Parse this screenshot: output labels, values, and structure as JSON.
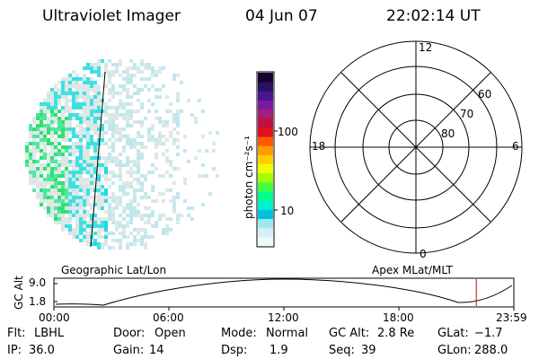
{
  "header": {
    "title": "Ultraviolet Imager",
    "date": "04 Jun 07",
    "time": "22:02:14 UT"
  },
  "colorbar": {
    "unit_label": "photon cm⁻²s⁻¹",
    "tick_labels": [
      "100",
      "10"
    ],
    "colors": [
      "#1a0030",
      "#2b1060",
      "#4a1590",
      "#7a1aa0",
      "#a0207a",
      "#c01040",
      "#e01020",
      "#ff5a00",
      "#ff9a00",
      "#ffd000",
      "#f0ff00",
      "#a0ff00",
      "#40ff40",
      "#00ff90",
      "#00f0d0",
      "#00c0e0",
      "#a0e8f0",
      "#d8f0f5",
      "#f0f8f8"
    ]
  },
  "polar_plot": {
    "mlt_labels": {
      "top": "12",
      "left": "18",
      "right": "6",
      "bottom": "0"
    },
    "lat_labels": [
      "60",
      "70",
      "80"
    ]
  },
  "altitude_panel": {
    "ylabel": "GC Alt",
    "y_ticks": [
      "9.0",
      "1.8"
    ],
    "left_title": "Geographic Lat/Lon",
    "right_title": "Apex  MLat/MLT",
    "time_ticks": [
      "00:00",
      "06:00",
      "12:00",
      "18:00",
      "23:59"
    ],
    "marker_time_hours": 22.04
  },
  "status": {
    "row1": [
      {
        "label": "Flt:",
        "value": "LBHL"
      },
      {
        "label": "Door:",
        "value": "Open"
      },
      {
        "label": "Mode:",
        "value": "Normal"
      },
      {
        "label": "GC Alt:",
        "value": "2.8 Re"
      },
      {
        "label": "GLat:",
        "value": "−1.7"
      }
    ],
    "row2": [
      {
        "label": "IP:",
        "value": "36.0"
      },
      {
        "label": "Gain:",
        "value": "14"
      },
      {
        "label": "Dsp:",
        "value": "1.9"
      },
      {
        "label": "Seq:",
        "value": "39"
      },
      {
        "label": "GLon:",
        "value": "288.0"
      }
    ]
  }
}
